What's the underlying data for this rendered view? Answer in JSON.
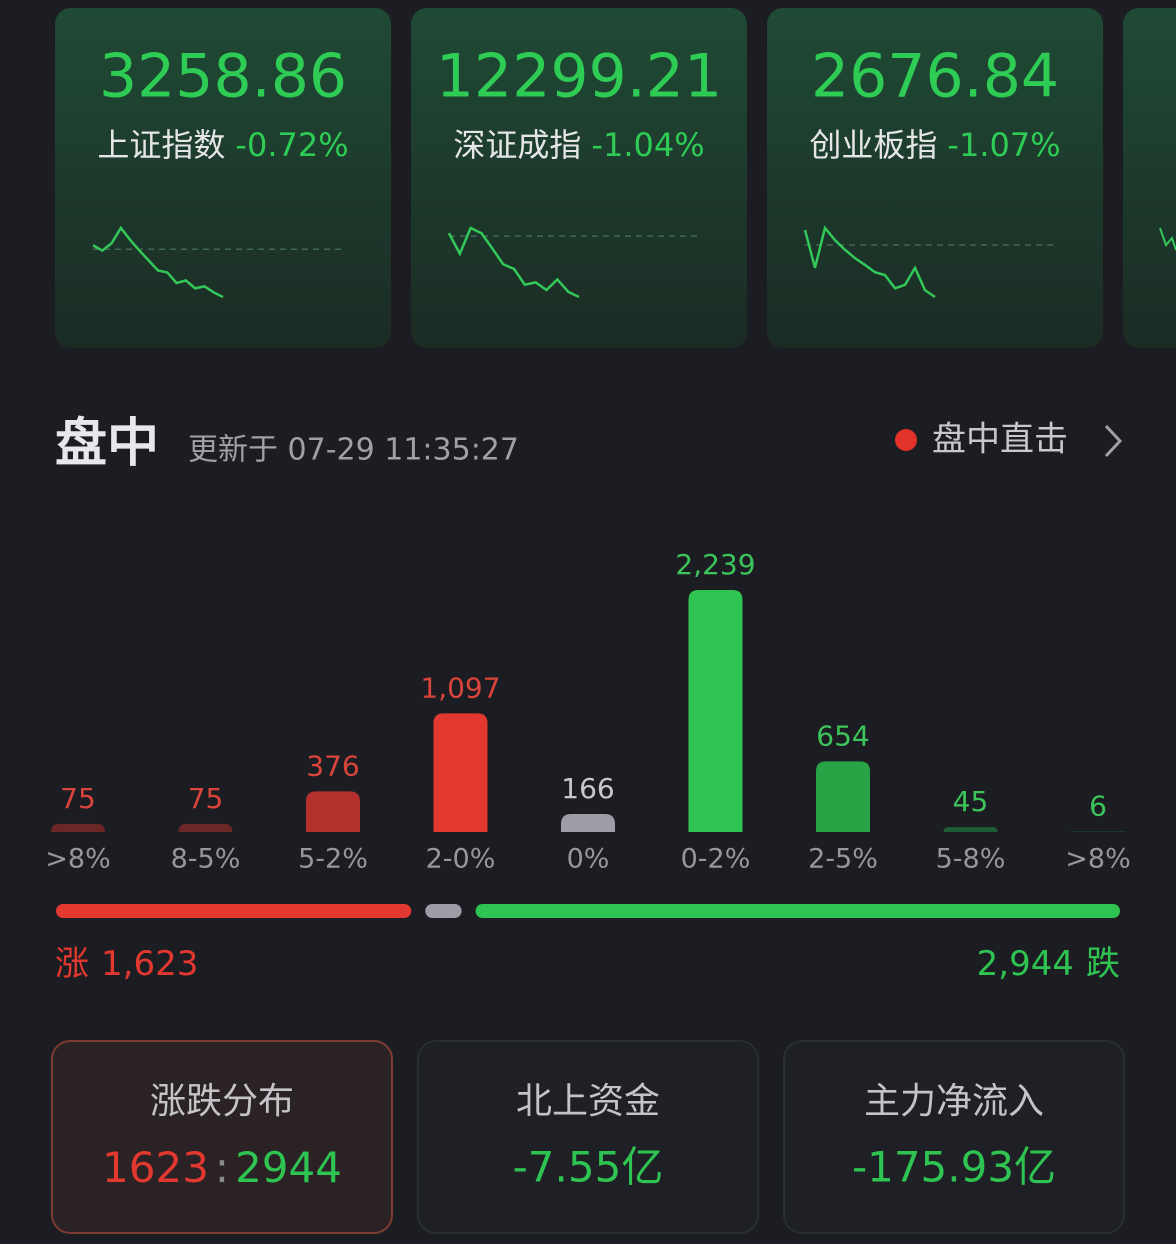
{
  "index_cards": [
    {
      "value": "3258.86",
      "name": "上证指数",
      "change": "-0.72%",
      "baseline": 0,
      "sparkline": [
        0.06,
        -0.02,
        0.09,
        0.32,
        0.14,
        -0.02,
        -0.17,
        -0.32,
        -0.35,
        -0.51,
        -0.47,
        -0.59,
        -0.56,
        -0.65,
        -0.72
      ]
    },
    {
      "value": "12299.21",
      "name": "深证成指",
      "change": "-1.04%",
      "baseline": 0,
      "sparkline": [
        0.05,
        -0.3,
        0.14,
        0.05,
        -0.21,
        -0.48,
        -0.56,
        -0.83,
        -0.79,
        -0.92,
        -0.74,
        -0.95,
        -1.04
      ]
    },
    {
      "value": "2676.84",
      "name": "创业板指",
      "change": "-1.07%",
      "baseline": 0,
      "sparkline": [
        0.31,
        -0.47,
        0.35,
        0.1,
        -0.1,
        -0.27,
        -0.41,
        -0.56,
        -0.62,
        -0.89,
        -0.82,
        -0.47,
        -0.93,
        -1.07
      ]
    }
  ],
  "section": {
    "title": "盘中",
    "updated": "更新于 07-29 11:35:27",
    "live_link": "盘中直击"
  },
  "chart_data": {
    "type": "bar",
    "categories": [
      ">8%",
      "8-5%",
      "5-2%",
      "2-0%",
      "0%",
      "0-2%",
      "2-5%",
      "5-8%",
      ">8%"
    ],
    "values": [
      75,
      75,
      376,
      1097,
      166,
      2239,
      654,
      45,
      6
    ],
    "value_labels": [
      "75",
      "75",
      "376",
      "1,097",
      "166",
      "2,239",
      "654",
      "45",
      "6"
    ],
    "colors": [
      "#6b2626",
      "#6b2626",
      "#b3302c",
      "#e2382f",
      "#9c9da5",
      "#2fc451",
      "#28a346",
      "#1e5c35",
      "#1d4a2f"
    ],
    "label_colors": [
      "#d9443b",
      "#d9443b",
      "#d9443b",
      "#d9443b",
      "#c8c8cc",
      "#3cc55a",
      "#3cc55a",
      "#3cc55a",
      "#3cc55a"
    ]
  },
  "summary": {
    "rise": {
      "label": "涨",
      "count": {
        "value": 1623,
        "label": "1,623"
      },
      "color": "#e2382f"
    },
    "fall": {
      "label": "跌",
      "count": {
        "value": 2944,
        "label": "2,944"
      },
      "color": "#2fc451"
    },
    "flat_color": "#9c9da5"
  },
  "stat_cards": [
    {
      "title": "涨跌分布",
      "rise": "1623",
      "separator": ":",
      "fall": "2944"
    },
    {
      "title": "北上资金",
      "value": "-7.55亿"
    },
    {
      "title": "主力净流入",
      "value": "-175.93亿"
    }
  ]
}
